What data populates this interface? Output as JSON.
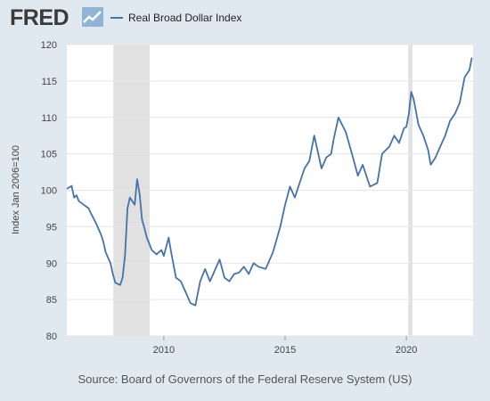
{
  "header": {
    "logo_text": "FRED",
    "logo_icon": "trend-chart-icon"
  },
  "legend": {
    "label": "Real Broad Dollar Index",
    "color": "#4572a7"
  },
  "footer": {
    "source": "Source: Board of Governors of the Federal Reserve System (US)"
  },
  "colors": {
    "background": "#e1e9f0",
    "plot_background": "#ffffff",
    "recession_shade": "#e1e1e1",
    "line": "#4572a7"
  },
  "chart_data": {
    "type": "line",
    "title": "",
    "xlabel": "",
    "ylabel": "Index Jan 2006=100",
    "xlim": [
      2006.0,
      2022.75
    ],
    "ylim": [
      80,
      120
    ],
    "x_ticks": [
      2010,
      2015,
      2020
    ],
    "y_ticks": [
      80,
      85,
      90,
      95,
      100,
      105,
      110,
      115,
      120
    ],
    "grid": "horizontal",
    "legend_position": "top-left",
    "recessions": [
      [
        2007.92,
        2009.42
      ],
      [
        2020.08,
        2020.25
      ]
    ],
    "series": [
      {
        "name": "Real Broad Dollar Index",
        "x": [
          2006.0,
          2006.2,
          2006.3,
          2006.4,
          2006.5,
          2006.7,
          2006.9,
          2007.0,
          2007.2,
          2007.4,
          2007.5,
          2007.6,
          2007.8,
          2007.9,
          2008.0,
          2008.2,
          2008.3,
          2008.4,
          2008.5,
          2008.6,
          2008.8,
          2008.9,
          2009.0,
          2009.1,
          2009.2,
          2009.3,
          2009.5,
          2009.7,
          2009.9,
          2010.0,
          2010.2,
          2010.3,
          2010.5,
          2010.7,
          2010.9,
          2011.1,
          2011.3,
          2011.5,
          2011.7,
          2011.9,
          2012.1,
          2012.3,
          2012.5,
          2012.7,
          2012.9,
          2013.1,
          2013.3,
          2013.5,
          2013.7,
          2013.9,
          2014.2,
          2014.5,
          2014.8,
          2015.0,
          2015.2,
          2015.4,
          2015.5,
          2015.8,
          2016.0,
          2016.2,
          2016.5,
          2016.7,
          2016.9,
          2017.0,
          2017.2,
          2017.5,
          2017.8,
          2018.0,
          2018.2,
          2018.5,
          2018.8,
          2019.0,
          2019.3,
          2019.5,
          2019.7,
          2019.9,
          2020.0,
          2020.1,
          2020.2,
          2020.3,
          2020.5,
          2020.7,
          2020.9,
          2021.0,
          2021.2,
          2021.4,
          2021.6,
          2021.8,
          2022.0,
          2022.2,
          2022.4,
          2022.6,
          2022.7
        ],
        "values": [
          100.2,
          100.6,
          99.0,
          99.3,
          98.5,
          98.0,
          97.5,
          96.8,
          95.5,
          94.0,
          93.0,
          91.5,
          90.0,
          88.5,
          87.3,
          87.0,
          88.0,
          91.0,
          97.5,
          99.0,
          98.0,
          101.5,
          99.5,
          96.0,
          94.8,
          93.5,
          91.8,
          91.2,
          91.8,
          91.0,
          93.5,
          91.5,
          88.0,
          87.5,
          86.0,
          84.5,
          84.2,
          87.5,
          89.2,
          87.5,
          89.0,
          90.5,
          88.0,
          87.5,
          88.5,
          88.7,
          89.5,
          88.5,
          90.0,
          89.5,
          89.2,
          91.5,
          95.0,
          98.0,
          100.5,
          99.0,
          100.0,
          103.0,
          104.0,
          107.5,
          103.0,
          104.5,
          105.0,
          107.0,
          110.0,
          108.0,
          104.5,
          102.0,
          103.5,
          100.5,
          101.0,
          105.0,
          106.0,
          107.5,
          106.5,
          108.5,
          108.7,
          110.5,
          113.5,
          112.5,
          109.0,
          107.5,
          105.5,
          103.5,
          104.5,
          106.0,
          107.5,
          109.5,
          110.5,
          112.0,
          115.5,
          116.5,
          118.2
        ]
      }
    ]
  }
}
